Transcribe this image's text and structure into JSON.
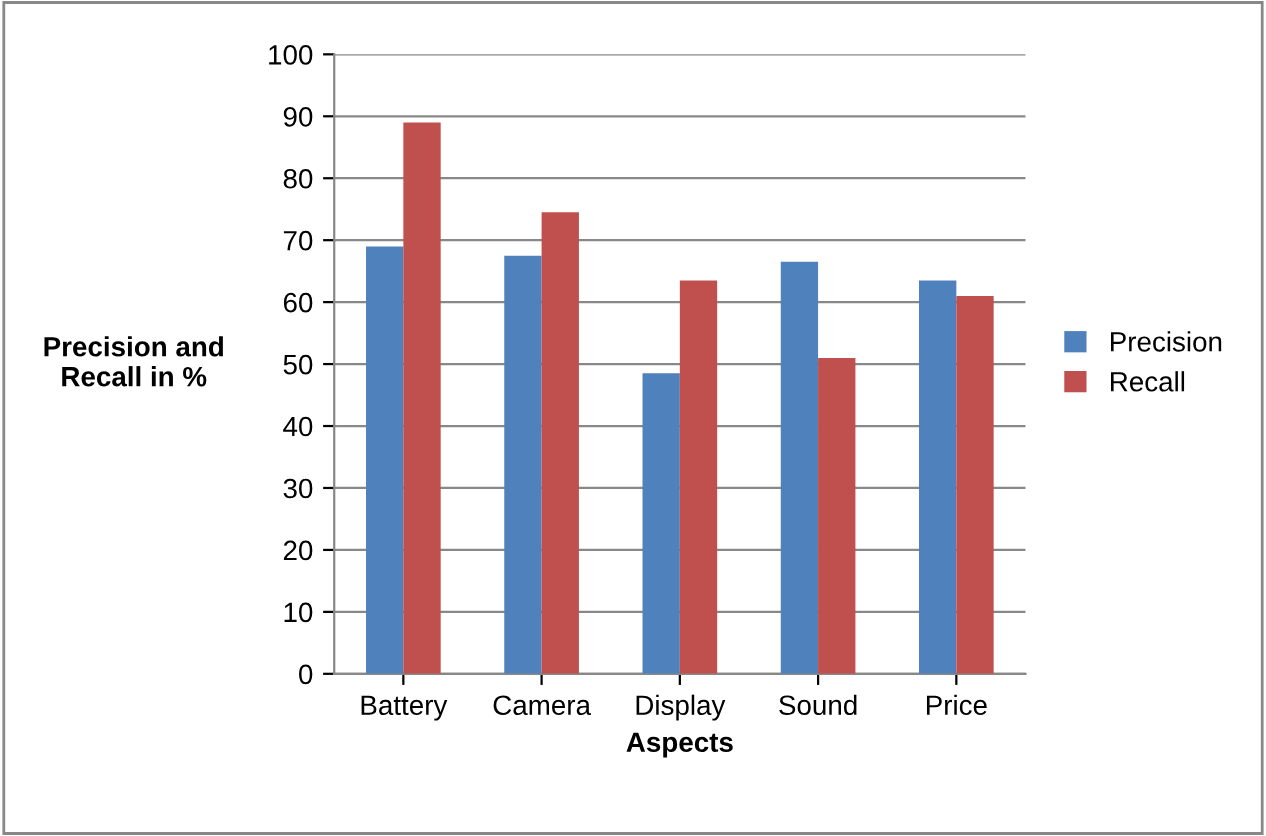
{
  "chart_data": {
    "type": "bar",
    "xlabel": "Aspects",
    "ylabel": "Precision and\nRecall in %",
    "categories": [
      "Battery",
      "Camera",
      "Display",
      "Sound",
      "Price"
    ],
    "series": [
      {
        "name": "Precision",
        "color": "#4f81bd",
        "values": [
          69,
          67.5,
          48.5,
          66.5,
          63.5
        ]
      },
      {
        "name": "Recall",
        "color": "#c0504d",
        "values": [
          89,
          74.5,
          63.5,
          51,
          61
        ]
      }
    ],
    "ylim": [
      0,
      100
    ],
    "yticks": [
      0,
      10,
      20,
      30,
      40,
      50,
      60,
      70,
      80,
      90,
      100
    ],
    "grid": "y",
    "legend": "right"
  }
}
